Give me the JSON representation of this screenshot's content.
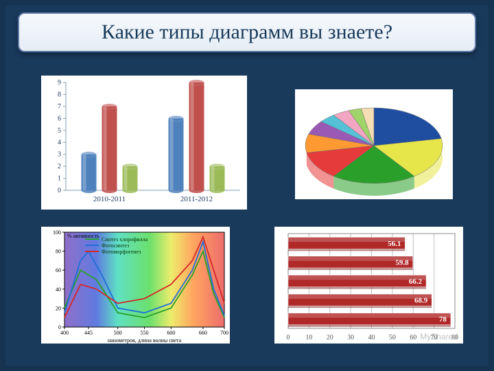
{
  "title": "Какие типы диаграмм вы знаете?",
  "slide_bg": "#1a3a5c",
  "panel_bg": "#ffffff",
  "barcol": {
    "type": "bar",
    "ylim": [
      0,
      9
    ],
    "ytick_step": 1,
    "categories": [
      "2010-2011",
      "2011-2012"
    ],
    "series_colors": [
      "#4f81bd",
      "#c0504d",
      "#9bbb59"
    ],
    "series": [
      [
        3,
        6
      ],
      [
        7,
        9
      ],
      [
        2,
        2
      ]
    ],
    "axis_color": "#7f9db9",
    "tick_font": 10,
    "cat_font": 11,
    "cat_color": "#1f3864"
  },
  "pie": {
    "type": "pie",
    "slices": [
      22,
      18,
      20,
      12,
      8,
      6,
      4,
      4,
      3,
      3
    ],
    "colors": [
      "#1f4ea1",
      "#e6e64b",
      "#2aa02a",
      "#e63b3b",
      "#ff9a33",
      "#9b59b6",
      "#55c1d6",
      "#f2a6c1",
      "#a0d468",
      "#f5deb3"
    ],
    "outline": "#6b6b6b"
  },
  "spectrum": {
    "type": "line",
    "xlim": [
      400,
      700
    ],
    "ylim": [
      0,
      100
    ],
    "xticks": [
      400,
      445,
      500,
      550,
      600,
      660,
      700
    ],
    "yticks": [
      0,
      20,
      40,
      60,
      80,
      100
    ],
    "x_label": "нанометров, длина волны света",
    "y_label": "% активность",
    "legend": [
      "Синтез хлорофилла",
      "Фотосинтез",
      "Фотоморфогенез"
    ],
    "legend_colors": [
      "#2aa02a",
      "#1f6fd6",
      "#d62728"
    ],
    "band_stops": [
      {
        "x": 400,
        "c": "#6a3fb5"
      },
      {
        "x": 460,
        "c": "#2a4fd6"
      },
      {
        "x": 500,
        "c": "#2ad6b0"
      },
      {
        "x": 560,
        "c": "#3bd63b"
      },
      {
        "x": 600,
        "c": "#e6e63b"
      },
      {
        "x": 640,
        "c": "#ff8a2a"
      },
      {
        "x": 700,
        "c": "#e63b3b"
      }
    ],
    "lines": {
      "green": [
        [
          400,
          20
        ],
        [
          430,
          60
        ],
        [
          460,
          50
        ],
        [
          500,
          15
        ],
        [
          550,
          10
        ],
        [
          600,
          20
        ],
        [
          640,
          55
        ],
        [
          660,
          80
        ],
        [
          680,
          35
        ],
        [
          700,
          10
        ]
      ],
      "blue": [
        [
          400,
          15
        ],
        [
          430,
          70
        ],
        [
          445,
          80
        ],
        [
          470,
          55
        ],
        [
          500,
          20
        ],
        [
          550,
          15
        ],
        [
          600,
          25
        ],
        [
          640,
          60
        ],
        [
          660,
          90
        ],
        [
          680,
          40
        ],
        [
          700,
          12
        ]
      ],
      "red": [
        [
          400,
          10
        ],
        [
          430,
          45
        ],
        [
          460,
          40
        ],
        [
          500,
          25
        ],
        [
          550,
          30
        ],
        [
          600,
          45
        ],
        [
          640,
          70
        ],
        [
          660,
          95
        ],
        [
          680,
          60
        ],
        [
          700,
          25
        ]
      ]
    },
    "axis_color": "#000000",
    "font": 8
  },
  "hbar": {
    "type": "horizontal-bar",
    "xlim": [
      0,
      80
    ],
    "xtick_step": 10,
    "values": [
      56.1,
      59.8,
      66.2,
      68.9,
      78
    ],
    "bar_color": "#b02828",
    "bar_edge": "#ffffff",
    "grid_color": "#bfbfbf",
    "tick_font": 10,
    "label_font": 11,
    "label_color": "#ffffff",
    "watermark": "MyShared"
  }
}
